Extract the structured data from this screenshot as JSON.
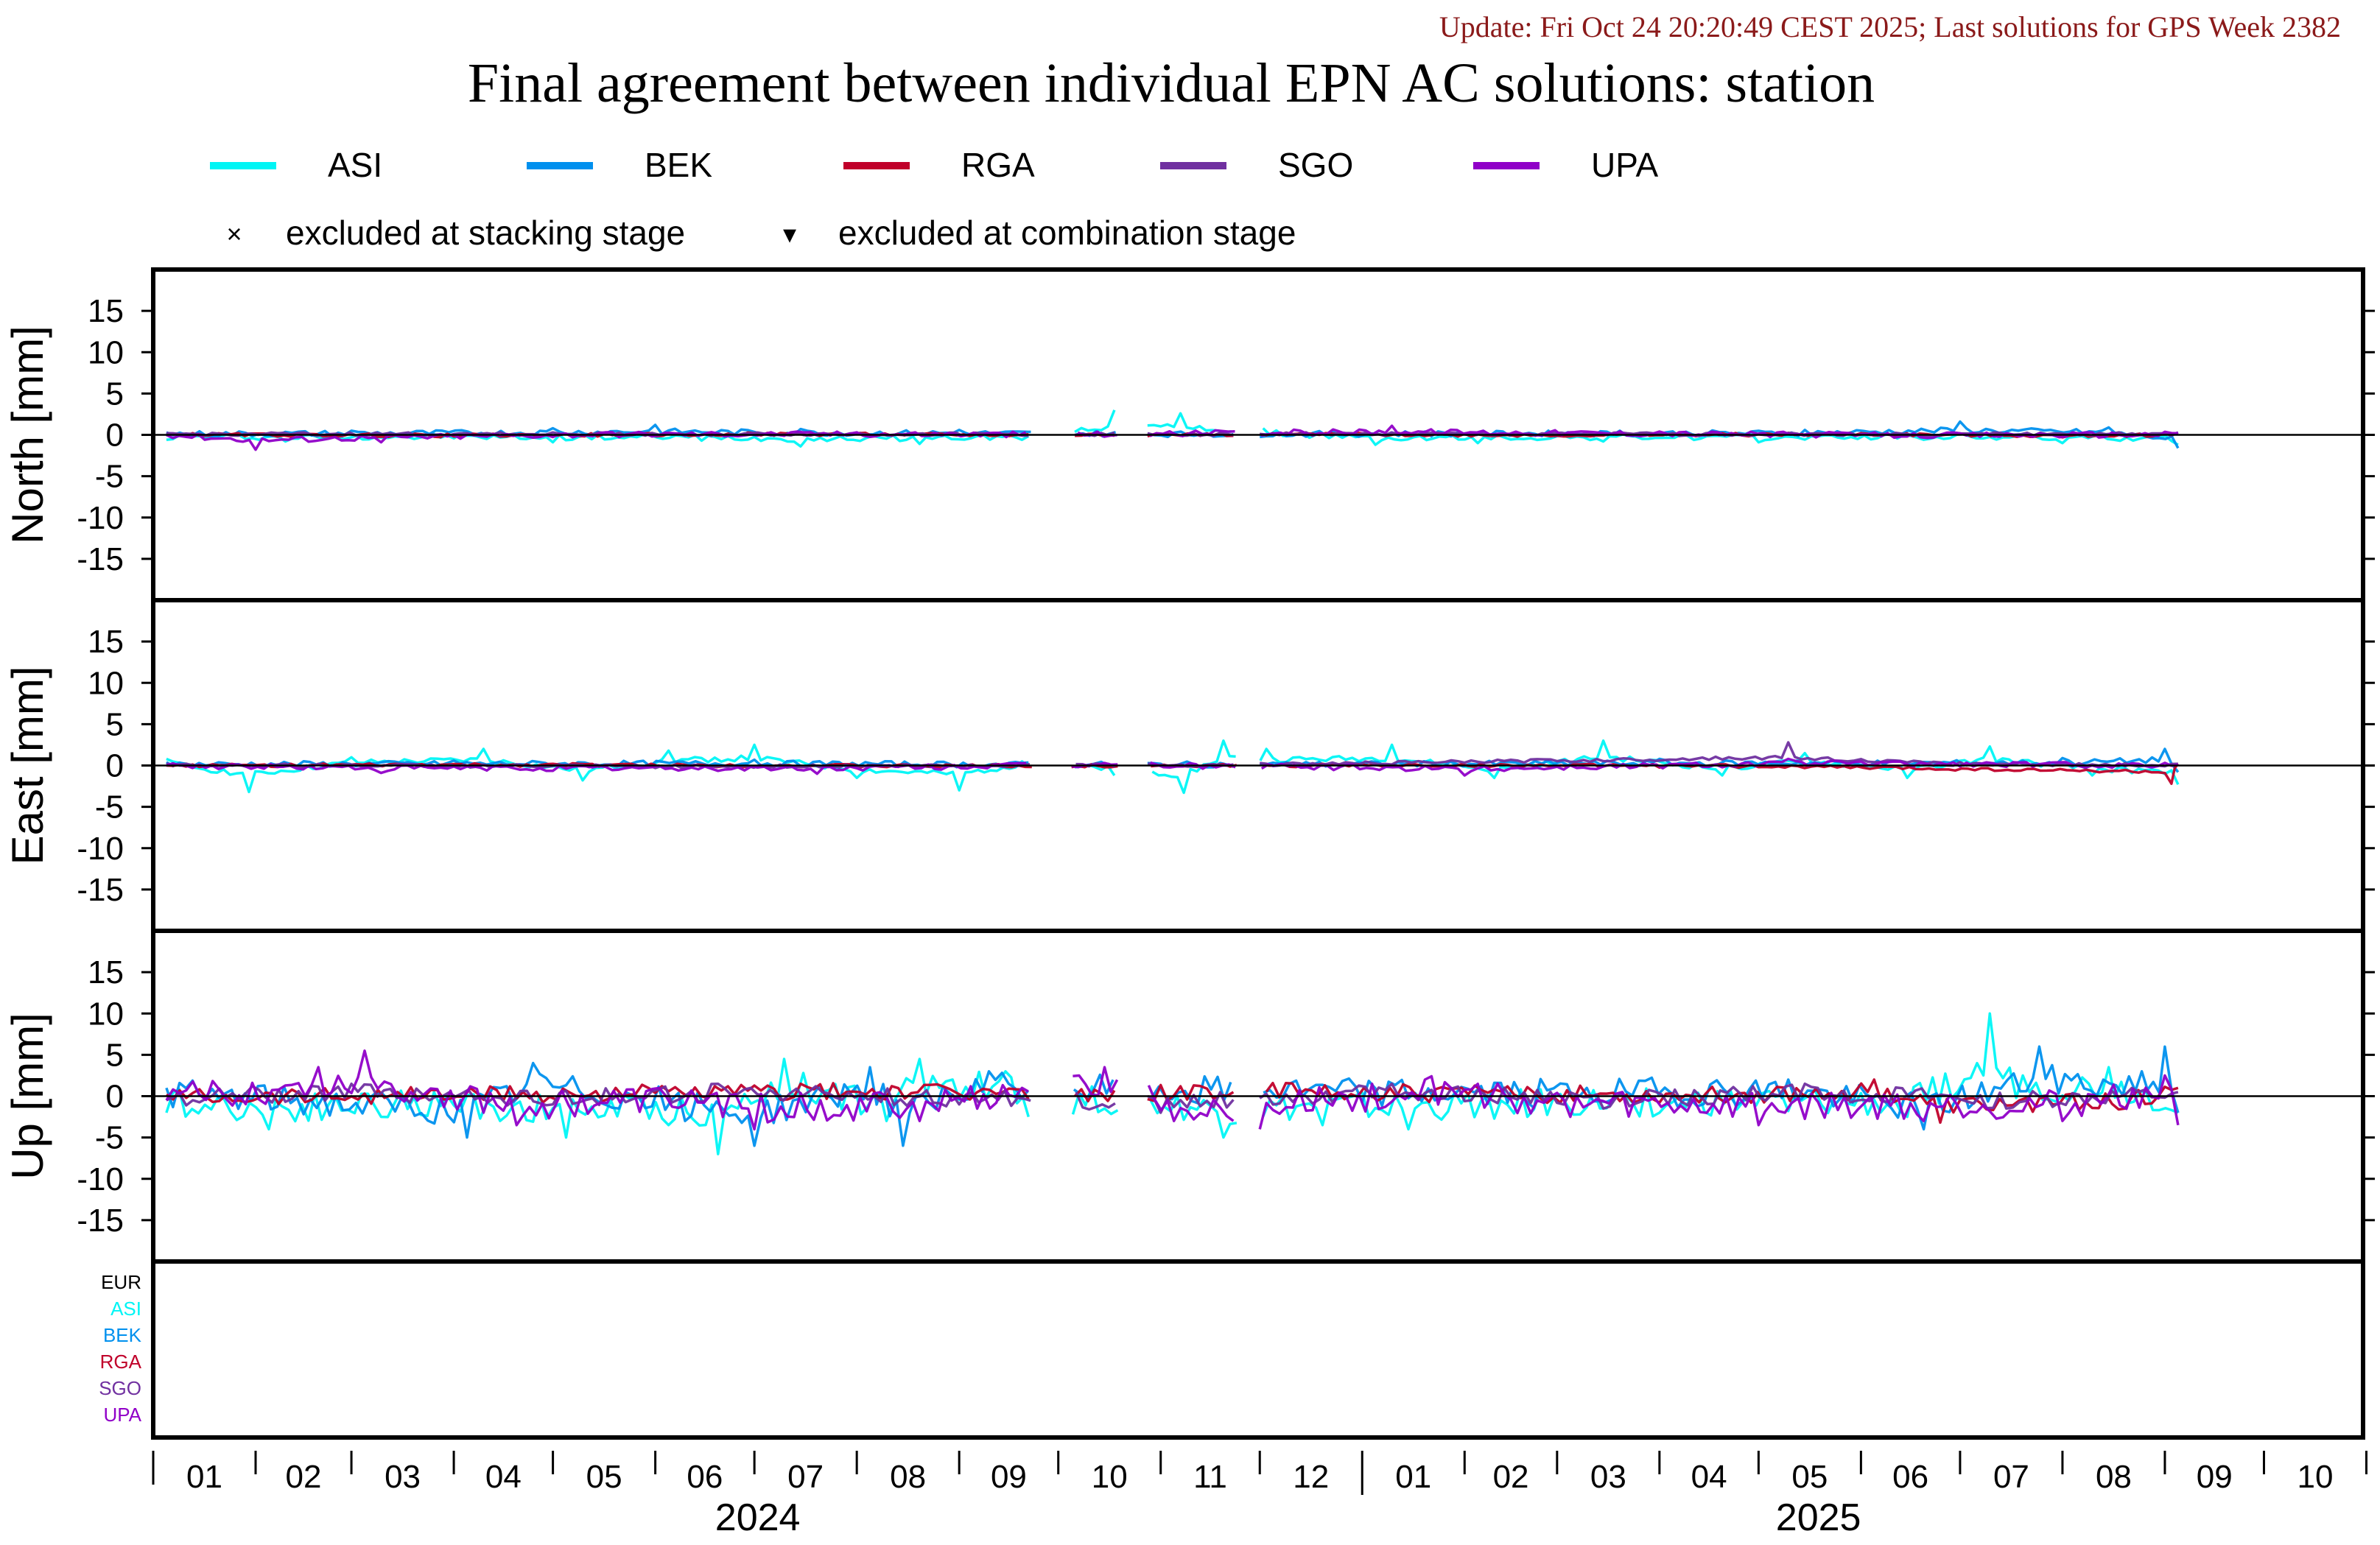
{
  "header": {
    "update_text": "Update: Fri Oct 24 20:20:49 CEST 2025; Last solutions for GPS Week 2382",
    "title": "Final agreement between individual EPN AC solutions: station"
  },
  "legend": {
    "series": [
      {
        "name": "ASI",
        "color": "#00f5f5"
      },
      {
        "name": "BEK",
        "color": "#0090ee"
      },
      {
        "name": "RGA",
        "color": "#c0002a"
      },
      {
        "name": "SGO",
        "color": "#7030a0"
      },
      {
        "name": "UPA",
        "color": "#9000c8"
      }
    ],
    "markers": [
      {
        "symbol": "×",
        "label": "excluded at stacking stage"
      },
      {
        "symbol": "▾",
        "label": "excluded at combination stage"
      }
    ]
  },
  "bottom_panel": {
    "labels": [
      {
        "text": "EUR",
        "color": "#000000"
      },
      {
        "text": "ASI",
        "color": "#00f5f5"
      },
      {
        "text": "BEK",
        "color": "#0090ee"
      },
      {
        "text": "RGA",
        "color": "#c0002a"
      },
      {
        "text": "SGO",
        "color": "#7030a0"
      },
      {
        "text": "UPA",
        "color": "#9000c8"
      }
    ]
  },
  "chart_data": {
    "type": "line",
    "time_axis": {
      "start": "2024-01-01",
      "end": "2025-10-31",
      "month_labels": [
        "01",
        "02",
        "03",
        "04",
        "05",
        "06",
        "07",
        "08",
        "09",
        "10",
        "11",
        "12",
        "01",
        "02",
        "03",
        "04",
        "05",
        "06",
        "07",
        "08",
        "09",
        "10"
      ],
      "year_labels": [
        "2024",
        "2025"
      ]
    },
    "ylim": [
      -20,
      20
    ],
    "yticks": [
      -15,
      -10,
      -5,
      0,
      5,
      10,
      15
    ],
    "grid": false,
    "legend_position": "top",
    "data_gaps": [
      [
        "2024-09-23",
        "2024-10-05"
      ],
      [
        "2024-10-19",
        "2024-10-28"
      ],
      [
        "2024-11-24",
        "2024-12-01"
      ]
    ],
    "series_names": [
      "ASI",
      "BEK",
      "RGA",
      "SGO",
      "UPA"
    ],
    "panels": [
      {
        "ylabel": "North [mm]",
        "series": [
          {
            "name": "ASI",
            "points": [
              [
                "2024-01-05",
                -0.6
              ],
              [
                "2024-02-10",
                -0.8
              ],
              [
                "2024-03-20",
                -0.5
              ],
              [
                "2024-05-01",
                -0.9
              ],
              [
                "2024-06-15",
                -0.7
              ],
              [
                "2024-07-15",
                -1.4
              ],
              [
                "2024-08-20",
                -1.1
              ],
              [
                "2024-09-20",
                -0.6
              ],
              [
                "2024-10-18",
                3.0
              ],
              [
                "2024-11-07",
                2.6
              ],
              [
                "2024-12-02",
                0.8
              ],
              [
                "2025-01-05",
                -1.2
              ],
              [
                "2025-02-05",
                -1.0
              ],
              [
                "2025-03-15",
                -0.8
              ],
              [
                "2025-05-01",
                -0.9
              ],
              [
                "2025-06-20",
                -0.6
              ],
              [
                "2025-08-01",
                -1.0
              ],
              [
                "2025-09-05",
                -1.2
              ]
            ]
          },
          {
            "name": "BEK",
            "points": [
              [
                "2024-01-05",
                0.3
              ],
              [
                "2024-03-01",
                0.5
              ],
              [
                "2024-05-01",
                0.8
              ],
              [
                "2024-06-01",
                1.2
              ],
              [
                "2024-07-15",
                0.7
              ],
              [
                "2024-09-01",
                0.6
              ],
              [
                "2024-11-15",
                0.2
              ],
              [
                "2025-01-20",
                0.4
              ],
              [
                "2025-03-20",
                0.5
              ],
              [
                "2025-05-15",
                0.6
              ],
              [
                "2025-07-01",
                1.6
              ],
              [
                "2025-08-15",
                0.9
              ],
              [
                "2025-09-05",
                -1.6
              ]
            ]
          },
          {
            "name": "RGA",
            "points": [
              [
                "2024-01-05",
                0.1
              ],
              [
                "2024-04-01",
                -0.2
              ],
              [
                "2024-07-01",
                0.2
              ],
              [
                "2024-09-20",
                0.0
              ],
              [
                "2024-12-15",
                0.2
              ],
              [
                "2025-03-01",
                -0.1
              ],
              [
                "2025-06-01",
                0.2
              ],
              [
                "2025-08-01",
                -0.3
              ],
              [
                "2025-09-05",
                0.1
              ]
            ]
          },
          {
            "name": "SGO",
            "points": [
              [
                "2024-01-05",
                0.2
              ],
              [
                "2024-04-15",
                0.3
              ],
              [
                "2024-08-01",
                0.2
              ],
              [
                "2024-12-15",
                0.3
              ],
              [
                "2025-04-15",
                0.2
              ],
              [
                "2025-09-05",
                0.3
              ]
            ]
          },
          {
            "name": "UPA",
            "points": [
              [
                "2024-01-05",
                0.0
              ],
              [
                "2024-02-01",
                -1.8
              ],
              [
                "2024-03-10",
                -0.9
              ],
              [
                "2024-05-15",
                0.2
              ],
              [
                "2024-08-01",
                0.3
              ],
              [
                "2024-10-01",
                0.1
              ],
              [
                "2025-01-10",
                1.1
              ],
              [
                "2025-04-01",
                0.4
              ],
              [
                "2025-06-15",
                -0.2
              ],
              [
                "2025-09-05",
                0.2
              ]
            ]
          }
        ]
      },
      {
        "ylabel": "East [mm]",
        "series": [
          {
            "name": "ASI",
            "points": [
              [
                "2024-01-05",
                0.8
              ],
              [
                "2024-01-30",
                -3.2
              ],
              [
                "2024-03-01",
                1.0
              ],
              [
                "2024-04-10",
                2.0
              ],
              [
                "2024-05-10",
                -1.8
              ],
              [
                "2024-06-05",
                1.8
              ],
              [
                "2024-07-01",
                2.5
              ],
              [
                "2024-08-01",
                -1.5
              ],
              [
                "2024-09-01",
                -3.0
              ],
              [
                "2024-09-20",
                0.5
              ],
              [
                "2024-10-18",
                -1.2
              ],
              [
                "2024-11-08",
                -3.3
              ],
              [
                "2024-11-20",
                3.0
              ],
              [
                "2024-12-03",
                2.0
              ],
              [
                "2025-01-10",
                2.5
              ],
              [
                "2025-02-10",
                -1.5
              ],
              [
                "2025-03-15",
                3.0
              ],
              [
                "2025-04-20",
                -1.2
              ],
              [
                "2025-05-15",
                1.5
              ],
              [
                "2025-06-15",
                -1.5
              ],
              [
                "2025-07-10",
                2.3
              ],
              [
                "2025-08-10",
                -1.2
              ],
              [
                "2025-09-05",
                -2.3
              ]
            ]
          },
          {
            "name": "BEK",
            "points": [
              [
                "2024-01-05",
                0.4
              ],
              [
                "2024-04-01",
                0.6
              ],
              [
                "2024-07-01",
                0.7
              ],
              [
                "2024-09-20",
                0.3
              ],
              [
                "2024-12-15",
                0.4
              ],
              [
                "2025-04-01",
                0.8
              ],
              [
                "2025-08-01",
                0.9
              ],
              [
                "2025-09-01",
                2.0
              ],
              [
                "2025-09-05",
                -0.8
              ]
            ]
          },
          {
            "name": "RGA",
            "points": [
              [
                "2024-01-05",
                0.0
              ],
              [
                "2024-05-01",
                0.2
              ],
              [
                "2024-09-01",
                -0.2
              ],
              [
                "2025-01-01",
                0.1
              ],
              [
                "2025-05-01",
                -0.2
              ],
              [
                "2025-09-03",
                -2.2
              ],
              [
                "2025-09-05",
                0.2
              ]
            ]
          },
          {
            "name": "SGO",
            "points": [
              [
                "2024-01-05",
                0.2
              ],
              [
                "2024-06-01",
                -0.3
              ],
              [
                "2024-12-01",
                0.3
              ],
              [
                "2025-05-10",
                2.8
              ],
              [
                "2025-07-01",
                0.4
              ],
              [
                "2025-09-05",
                0.2
              ]
            ]
          },
          {
            "name": "UPA",
            "points": [
              [
                "2024-01-05",
                0.0
              ],
              [
                "2024-03-10",
                -0.9
              ],
              [
                "2024-07-20",
                -1.0
              ],
              [
                "2024-10-15",
                0.3
              ],
              [
                "2025-02-01",
                -1.2
              ],
              [
                "2025-05-10",
                0.8
              ],
              [
                "2025-09-05",
                0.1
              ]
            ]
          }
        ]
      },
      {
        "ylabel": "Up [mm]",
        "series": [
          {
            "name": "ASI",
            "points": [
              [
                "2024-01-05",
                -2.0
              ],
              [
                "2024-02-05",
                -4.0
              ],
              [
                "2024-03-10",
                -2.5
              ],
              [
                "2024-04-15",
                -3.0
              ],
              [
                "2024-05-05",
                -5.0
              ],
              [
                "2024-06-05",
                -3.5
              ],
              [
                "2024-06-20",
                -7.0
              ],
              [
                "2024-07-10",
                4.5
              ],
              [
                "2024-08-10",
                -3.0
              ],
              [
                "2024-08-20",
                4.5
              ],
              [
                "2024-09-15",
                3.0
              ],
              [
                "2024-09-22",
                -2.5
              ],
              [
                "2024-10-15",
                -1.5
              ],
              [
                "2024-11-20",
                -5.0
              ],
              [
                "2024-12-20",
                -3.5
              ],
              [
                "2025-01-15",
                -4.0
              ],
              [
                "2025-02-20",
                -2.5
              ],
              [
                "2025-04-01",
                -2.0
              ],
              [
                "2025-05-10",
                -1.8
              ],
              [
                "2025-06-15",
                -2.5
              ],
              [
                "2025-07-10",
                10.0
              ],
              [
                "2025-07-20",
                2.5
              ],
              [
                "2025-08-15",
                3.5
              ],
              [
                "2025-09-05",
                -2.0
              ]
            ]
          },
          {
            "name": "BEK",
            "points": [
              [
                "2024-01-05",
                1.0
              ],
              [
                "2024-04-05",
                -5.0
              ],
              [
                "2024-04-25",
                4.0
              ],
              [
                "2024-06-10",
                -3.0
              ],
              [
                "2024-07-01",
                -6.0
              ],
              [
                "2024-08-05",
                3.5
              ],
              [
                "2024-08-15",
                -6.0
              ],
              [
                "2024-09-10",
                3.0
              ],
              [
                "2024-12-10",
                1.5
              ],
              [
                "2025-03-10",
                1.0
              ],
              [
                "2025-05-10",
                2.0
              ],
              [
                "2025-06-20",
                -4.0
              ],
              [
                "2025-07-25",
                6.0
              ],
              [
                "2025-08-25",
                3.0
              ],
              [
                "2025-09-01",
                6.0
              ],
              [
                "2025-09-05",
                -2.0
              ]
            ]
          },
          {
            "name": "RGA",
            "points": [
              [
                "2024-01-05",
                0.2
              ],
              [
                "2024-03-15",
                0.5
              ],
              [
                "2024-05-20",
                1.0
              ],
              [
                "2024-07-15",
                1.5
              ],
              [
                "2024-09-20",
                0.8
              ],
              [
                "2024-12-01",
                1.5
              ],
              [
                "2025-02-10",
                0.8
              ],
              [
                "2025-04-15",
                0.3
              ],
              [
                "2025-06-05",
                2.0
              ],
              [
                "2025-06-25",
                -3.2
              ],
              [
                "2025-08-20",
                -1.5
              ],
              [
                "2025-09-05",
                1.0
              ]
            ]
          },
          {
            "name": "SGO",
            "points": [
              [
                "2024-01-05",
                -0.5
              ],
              [
                "2024-03-01",
                1.5
              ],
              [
                "2024-05-01",
                -1.0
              ],
              [
                "2024-06-20",
                1.5
              ],
              [
                "2024-09-01",
                -1.0
              ],
              [
                "2024-11-01",
                -2.0
              ],
              [
                "2025-01-10",
                1.5
              ],
              [
                "2025-03-15",
                -1.5
              ],
              [
                "2025-05-15",
                1.5
              ],
              [
                "2025-07-15",
                -1.5
              ],
              [
                "2025-09-05",
                0.5
              ]
            ]
          },
          {
            "name": "UPA",
            "points": [
              [
                "2024-01-05",
                -0.5
              ],
              [
                "2024-02-20",
                3.5
              ],
              [
                "2024-03-05",
                5.5
              ],
              [
                "2024-04-20",
                -3.5
              ],
              [
                "2024-06-10",
                -1.0
              ],
              [
                "2024-07-01",
                -4.0
              ],
              [
                "2024-08-20",
                -3.0
              ],
              [
                "2024-09-20",
                1.0
              ],
              [
                "2024-10-15",
                3.5
              ],
              [
                "2024-11-05",
                -3.0
              ],
              [
                "2024-12-01",
                -4.0
              ],
              [
                "2025-01-20",
                2.0
              ],
              [
                "2025-03-05",
                -2.5
              ],
              [
                "2025-05-01",
                -3.5
              ],
              [
                "2025-06-20",
                -3.0
              ],
              [
                "2025-08-01",
                -3.0
              ],
              [
                "2025-09-01",
                2.5
              ],
              [
                "2025-09-05",
                -3.5
              ]
            ]
          }
        ]
      }
    ]
  }
}
